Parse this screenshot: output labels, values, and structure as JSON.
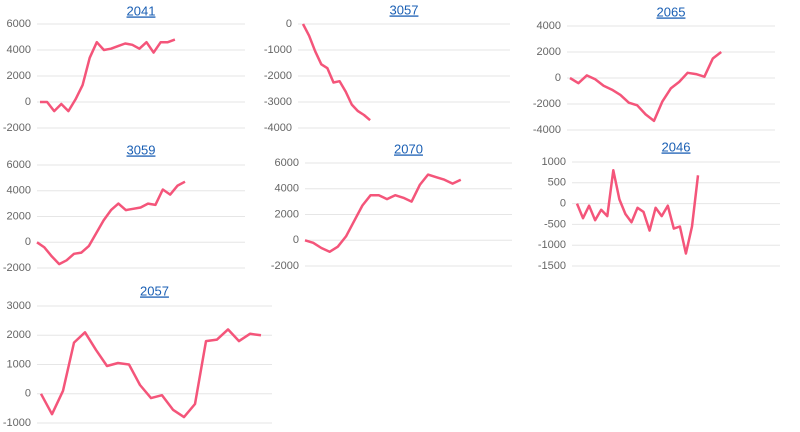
{
  "chart_data": [
    {
      "type": "line",
      "title": "2041",
      "color": "#f4557a",
      "grid": true,
      "ylim": [
        -2000,
        6000
      ],
      "yticks": [
        6000,
        4000,
        2000,
        0,
        -2000
      ],
      "series": [
        {
          "values": [
            0,
            0,
            -700,
            -150,
            -700,
            200,
            1300,
            3400,
            4600,
            4000,
            4100,
            4300,
            4500,
            4400,
            4100,
            4600,
            3800,
            4600,
            4600,
            4800
          ]
        }
      ]
    },
    {
      "type": "line",
      "title": "3057",
      "color": "#f4557a",
      "grid": true,
      "ylim": [
        -4000,
        0
      ],
      "yticks": [
        0,
        -1000,
        -2000,
        -3000,
        -4000
      ],
      "series": [
        {
          "values": [
            0,
            -450,
            -1050,
            -1550,
            -1700,
            -2250,
            -2200,
            -2600,
            -3100,
            -3350,
            -3500,
            -3700
          ]
        }
      ]
    },
    {
      "type": "line",
      "title": "2065",
      "color": "#f4557a",
      "grid": true,
      "ylim": [
        -4000,
        4000
      ],
      "yticks": [
        4000,
        2000,
        0,
        -2000,
        -4000
      ],
      "series": [
        {
          "values": [
            0,
            -400,
            200,
            -100,
            -600,
            -900,
            -1300,
            -1900,
            -2100,
            -2800,
            -3300,
            -1800,
            -800,
            -300,
            400,
            300,
            100,
            1500,
            2000
          ]
        }
      ]
    },
    {
      "type": "line",
      "title": "3059",
      "color": "#f4557a",
      "grid": true,
      "ylim": [
        -2000,
        6000
      ],
      "yticks": [
        6000,
        4000,
        2000,
        0,
        -2000
      ],
      "series": [
        {
          "values": [
            0,
            -400,
            -1100,
            -1700,
            -1400,
            -900,
            -800,
            -300,
            700,
            1700,
            2500,
            3000,
            2500,
            2600,
            2700,
            3000,
            2900,
            4100,
            3700,
            4400,
            4700
          ]
        }
      ]
    },
    {
      "type": "line",
      "title": "2070",
      "color": "#f4557a",
      "grid": true,
      "ylim": [
        -2000,
        6000
      ],
      "yticks": [
        6000,
        4000,
        2000,
        0,
        -2000
      ],
      "series": [
        {
          "values": [
            0,
            -200,
            -600,
            -900,
            -500,
            300,
            1500,
            2700,
            3500,
            3500,
            3200,
            3500,
            3300,
            3000,
            4300,
            5100,
            4900,
            4700,
            4400,
            4700
          ]
        }
      ]
    },
    {
      "type": "line",
      "title": "2046",
      "color": "#f4557a",
      "grid": true,
      "ylim": [
        -1500,
        1000
      ],
      "yticks": [
        1000,
        500,
        0,
        -500,
        -1000,
        -1500
      ],
      "series": [
        {
          "values": [
            0,
            -350,
            -50,
            -400,
            -150,
            -300,
            800,
            100,
            -250,
            -450,
            -100,
            -200,
            -650,
            -100,
            -300,
            -50,
            -600,
            -550,
            -1200,
            -550,
            680
          ]
        }
      ]
    },
    {
      "type": "line",
      "title": "2057",
      "color": "#f4557a",
      "grid": true,
      "ylim": [
        -1000,
        3000
      ],
      "yticks": [
        3000,
        2000,
        1000,
        0,
        -1000
      ],
      "series": [
        {
          "values": [
            0,
            -700,
            100,
            1750,
            2100,
            1500,
            950,
            1050,
            1000,
            300,
            -150,
            -50,
            -550,
            -800,
            -350,
            1800,
            1850,
            2200,
            1800,
            2050,
            2000
          ]
        }
      ]
    }
  ]
}
